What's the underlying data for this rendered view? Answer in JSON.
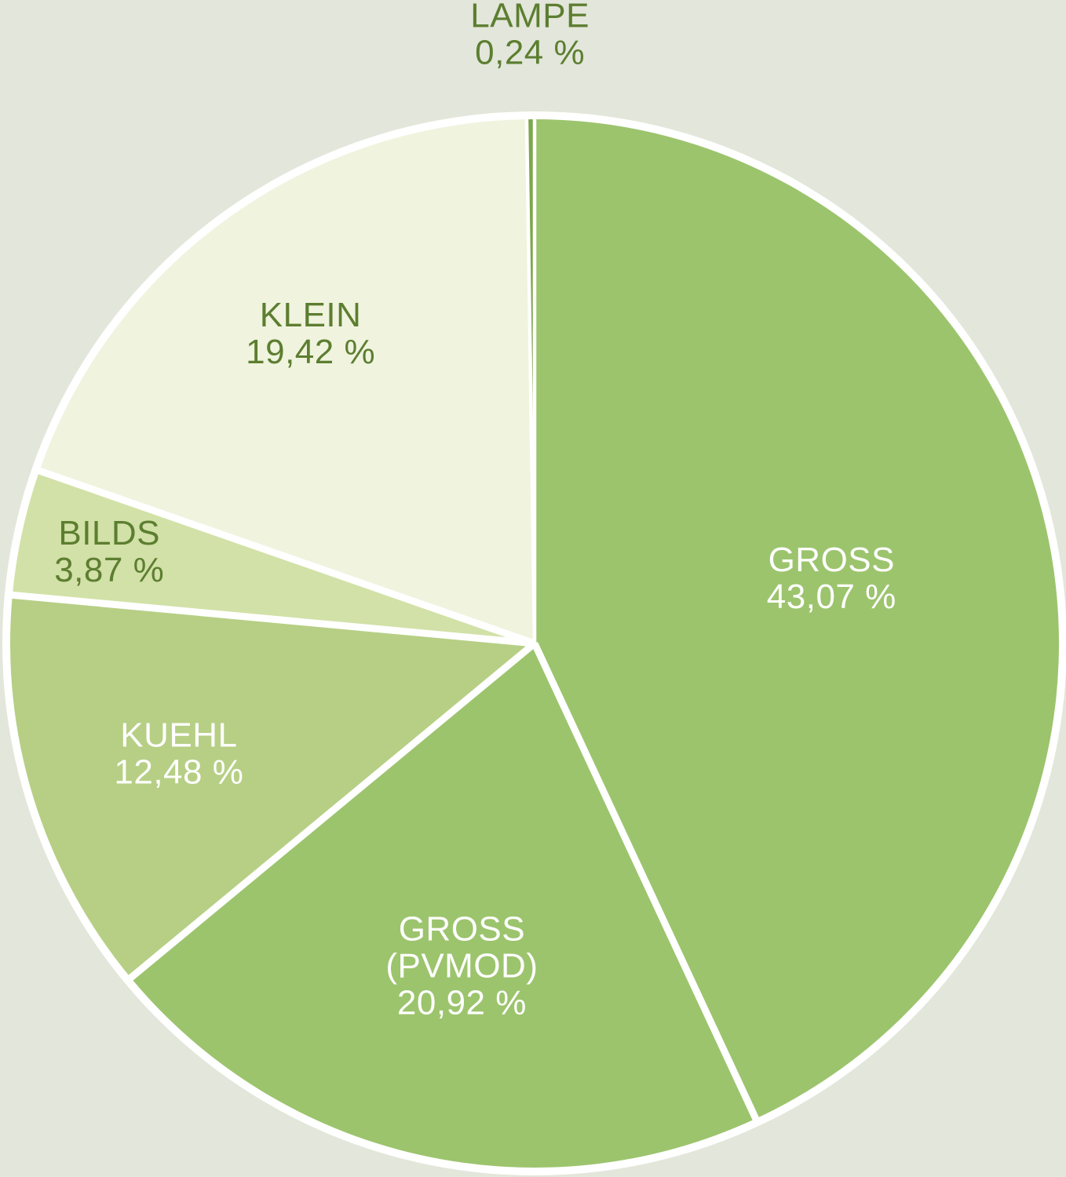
{
  "page": {
    "background_color": "#e3e6da"
  },
  "chart_data": {
    "type": "pie",
    "title": "",
    "direction": "clockwise",
    "start_angle_deg": 0,
    "background": "#e3e6da",
    "divider_color": "#ffffff",
    "rim_color": "#ffffff",
    "dark_label_color": "#5c7e30",
    "slices": [
      {
        "name": "gross",
        "label_lines": [
          "GROSS"
        ],
        "value": 43.07,
        "value_text": "43,07 %",
        "color": "#9cc46d",
        "label_color": "#ffffff",
        "label_radius_frac": 0.58
      },
      {
        "name": "gross-pvmod",
        "label_lines": [
          "GROSS",
          "(PVMOD)"
        ],
        "value": 20.92,
        "value_text": "20,92 %",
        "color": "#9cc46d",
        "label_color": "#ffffff",
        "label_radius_frac": 0.63
      },
      {
        "name": "kuehl",
        "label_lines": [
          "KUEHL"
        ],
        "value": 12.48,
        "value_text": "12,48 %",
        "color": "#b6cf85",
        "label_color": "#ffffff",
        "label_radius_frac": 0.71
      },
      {
        "name": "bilds",
        "label_lines": [
          "BILDS"
        ],
        "value": 3.87,
        "value_text": "3,87 %",
        "color": "#d2e1a7",
        "label_color": "#5c7e30",
        "label_radius_frac": 0.83
      },
      {
        "name": "klein",
        "label_lines": [
          "KLEIN"
        ],
        "value": 19.42,
        "value_text": "19,42 %",
        "color": "#f0f3de",
        "label_color": "#5c7e30",
        "label_radius_frac": 0.73
      },
      {
        "name": "lampe",
        "label_lines": [
          "LAMPE"
        ],
        "value": 0.24,
        "value_text": "0,24 %",
        "color": "#7da74b",
        "label_color": "#5c7e30",
        "label_radius_frac": 1.163
      }
    ]
  }
}
